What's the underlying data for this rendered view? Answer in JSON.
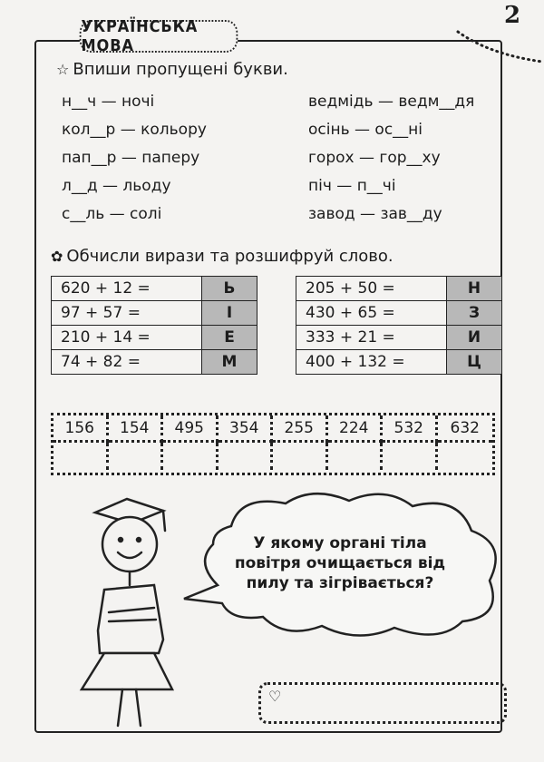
{
  "page_number": "2",
  "subject_title": "УКРАЇНСЬКА МОВА",
  "task1": {
    "icon": "star-icon",
    "instruction": "Впиши пропущені букви.",
    "left": [
      "н__ч — ночі",
      "кол__р — кольору",
      "пап__р — паперу",
      "л__д — льоду",
      "с__ль — солі"
    ],
    "right": [
      "ведмідь — ведм__дя",
      "осінь — ос__ні",
      "горох — гор__ху",
      "піч — п__чі",
      "завод — зав__ду"
    ]
  },
  "task2": {
    "icon": "flower-icon",
    "instruction": "Обчисли вирази та розшифруй слово.",
    "left_table": [
      {
        "expr": "620 + 12 =",
        "letter": "Ь"
      },
      {
        "expr": "97 + 57 =",
        "letter": "І"
      },
      {
        "expr": "210 + 14 =",
        "letter": "Е"
      },
      {
        "expr": "74 + 82 =",
        "letter": "М"
      }
    ],
    "right_table": [
      {
        "expr": "205 + 50 =",
        "letter": "Н"
      },
      {
        "expr": "430 + 65 =",
        "letter": "З"
      },
      {
        "expr": "333 + 21 =",
        "letter": "И"
      },
      {
        "expr": "400 + 132 =",
        "letter": "Ц"
      }
    ],
    "code_numbers": [
      "156",
      "154",
      "495",
      "354",
      "255",
      "224",
      "532",
      "632"
    ]
  },
  "riddle": {
    "question": "У якому органі тіла повітря очищається від пилу та зігрівається?",
    "answer_icon": "heart-icon"
  },
  "colors": {
    "letter_cell": "#b8b8b8",
    "ink": "#1c1c1c",
    "paper": "#f4f3f1"
  }
}
